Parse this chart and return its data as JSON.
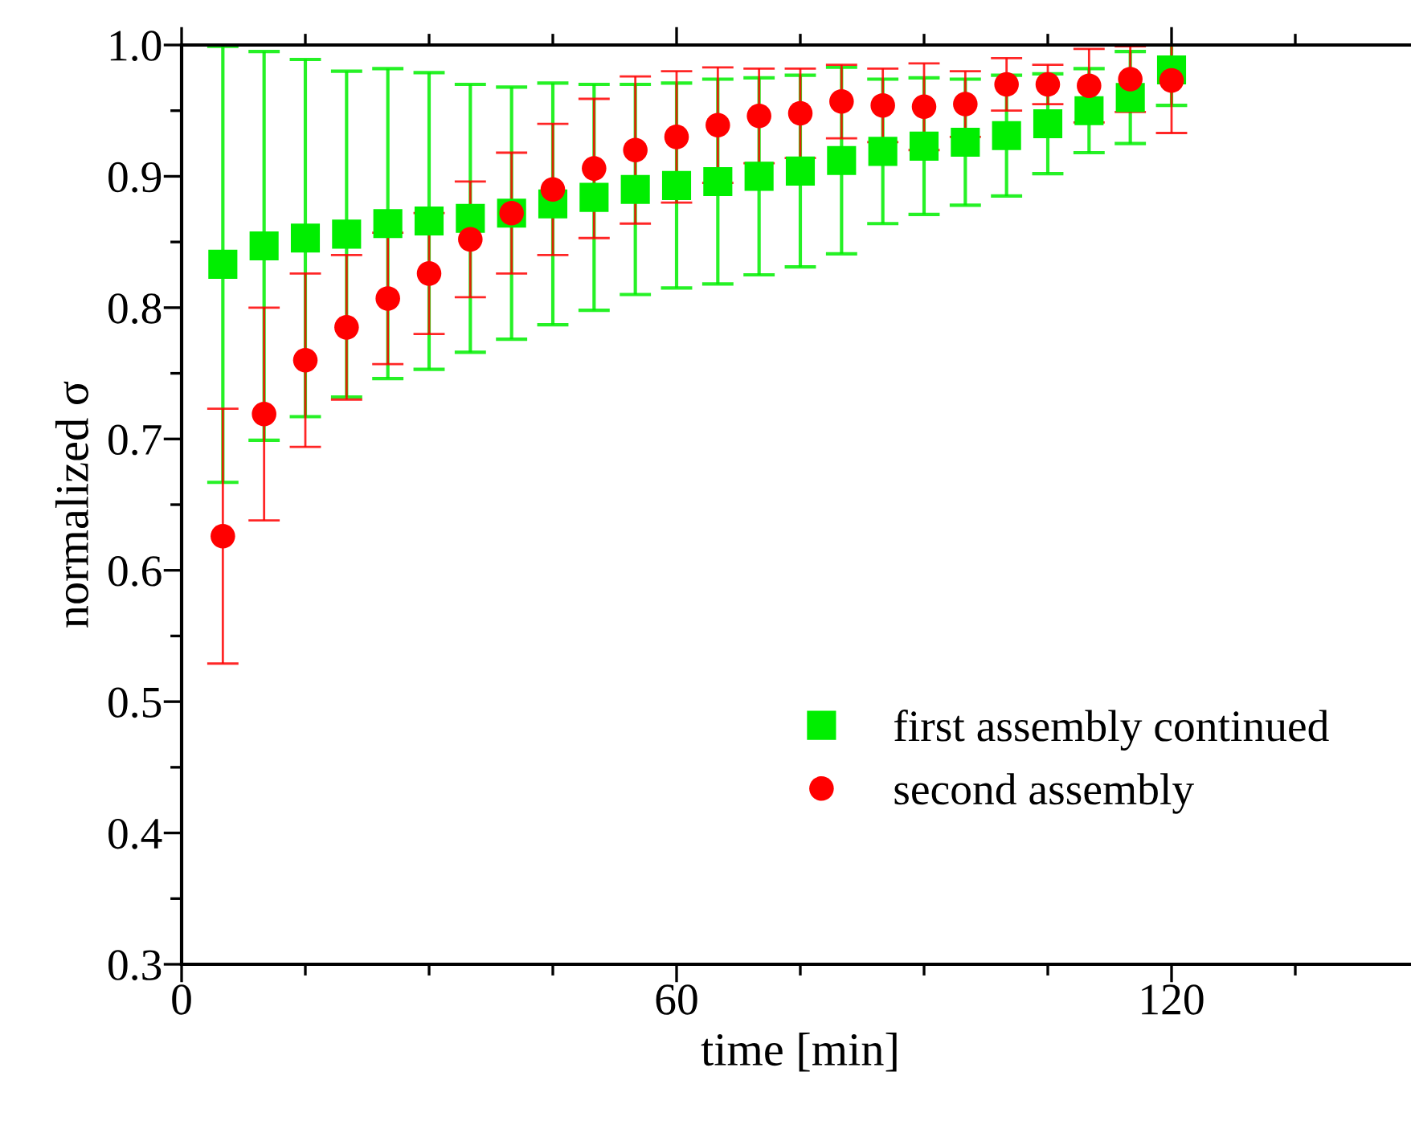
{
  "chart_data": {
    "type": "scatter",
    "xlabel": "time [min]",
    "ylabel": "normalized σ",
    "x": [
      5,
      10,
      15,
      20,
      25,
      30,
      35,
      40,
      45,
      50,
      55,
      60,
      65,
      70,
      75,
      80,
      85,
      90,
      95,
      100,
      105,
      110,
      115,
      120
    ],
    "series": [
      {
        "name": "first assembly continued",
        "color": "#00ee00",
        "marker": "square",
        "values": [
          0.833,
          0.847,
          0.853,
          0.856,
          0.864,
          0.866,
          0.868,
          0.872,
          0.879,
          0.884,
          0.89,
          0.893,
          0.896,
          0.9,
          0.904,
          0.912,
          0.919,
          0.923,
          0.926,
          0.931,
          0.94,
          0.95,
          0.96,
          0.981
        ],
        "errors": [
          0.166,
          0.148,
          0.136,
          0.124,
          0.118,
          0.113,
          0.102,
          0.096,
          0.092,
          0.086,
          0.08,
          0.078,
          0.078,
          0.075,
          0.073,
          0.071,
          0.055,
          0.052,
          0.048,
          0.046,
          0.038,
          0.032,
          0.035,
          0.027
        ]
      },
      {
        "name": "second assembly",
        "color": "#ff0000",
        "marker": "circle",
        "values": [
          0.626,
          0.719,
          0.76,
          0.785,
          0.807,
          0.826,
          0.852,
          0.872,
          0.89,
          0.906,
          0.92,
          0.93,
          0.939,
          0.946,
          0.948,
          0.957,
          0.954,
          0.953,
          0.955,
          0.97,
          0.97,
          0.969,
          0.974,
          0.973
        ],
        "errors": [
          0.097,
          0.081,
          0.066,
          0.055,
          0.05,
          0.046,
          0.044,
          0.046,
          0.05,
          0.053,
          0.056,
          0.05,
          0.044,
          0.036,
          0.034,
          0.028,
          0.028,
          0.033,
          0.025,
          0.02,
          0.015,
          0.028,
          0.025,
          0.04
        ]
      }
    ],
    "xlim": [
      0,
      150
    ],
    "ylim": [
      0.3,
      1.0
    ],
    "xticks": [
      0,
      {
        "value": 15,
        "label": null
      },
      {
        "value": 30,
        "label": null
      },
      {
        "value": 45,
        "label": null
      },
      60,
      {
        "value": 75,
        "label": null
      },
      {
        "value": 90,
        "label": null
      },
      {
        "value": 105,
        "label": null
      },
      120,
      {
        "value": 135,
        "label": null
      }
    ],
    "yticks": [
      0.3,
      {
        "value": 0.35,
        "label": null
      },
      0.4,
      {
        "value": 0.45,
        "label": null
      },
      0.5,
      {
        "value": 0.55,
        "label": null
      },
      0.6,
      {
        "value": 0.65,
        "label": null
      },
      0.7,
      {
        "value": 0.75,
        "label": null
      },
      0.8,
      {
        "value": 0.85,
        "label": null
      },
      0.9,
      {
        "value": 0.95,
        "label": null
      },
      {
        "value": 1.0,
        "label": "1.0"
      }
    ],
    "grid": false,
    "legend": "bottom right"
  }
}
